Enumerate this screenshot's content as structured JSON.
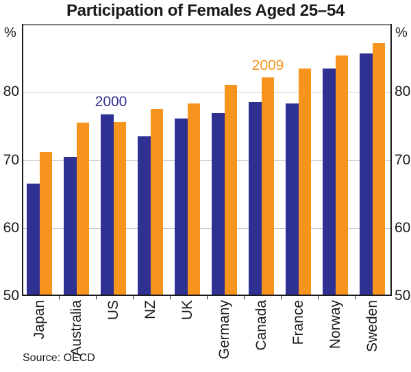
{
  "title": "Participation of Females Aged 25–54",
  "source": "Source: OECD",
  "axis": {
    "unit_label": "%",
    "tick_labels": [
      "80",
      "70",
      "60",
      "50"
    ],
    "tick_values": [
      80,
      70,
      60,
      50
    ]
  },
  "annotations": {
    "series_2000_label": "2000",
    "series_2009_label": "2009"
  },
  "colors": {
    "bar_2000": "#2E3192",
    "bar_2009": "#F7941E",
    "gridline": "#c9c9c9",
    "frame_top": "#808080",
    "frame": "#1a1a1a",
    "text": "#1a1a1a"
  },
  "chart_data": {
    "type": "bar",
    "title": "Participation of Females Aged 25–54",
    "categories": [
      "Japan",
      "Australia",
      "US",
      "NZ",
      "UK",
      "Germany",
      "Canada",
      "France",
      "Norway",
      "Sweden"
    ],
    "series": [
      {
        "name": "2000",
        "color": "#2E3192",
        "values": [
          66.5,
          70.5,
          76.7,
          73.5,
          76.1,
          76.9,
          78.5,
          78.3,
          83.5,
          85.7
        ]
      },
      {
        "name": "2009",
        "color": "#F7941E",
        "values": [
          71.2,
          75.5,
          75.6,
          77.5,
          78.3,
          81.0,
          82.1,
          83.5,
          85.4,
          87.2
        ]
      }
    ],
    "ylabel": "%",
    "ylim": [
      50,
      90
    ],
    "gridlines": [
      60,
      70,
      80
    ],
    "grid": true,
    "legend_position": "inline-annotations",
    "source_note": "Source: OECD"
  }
}
